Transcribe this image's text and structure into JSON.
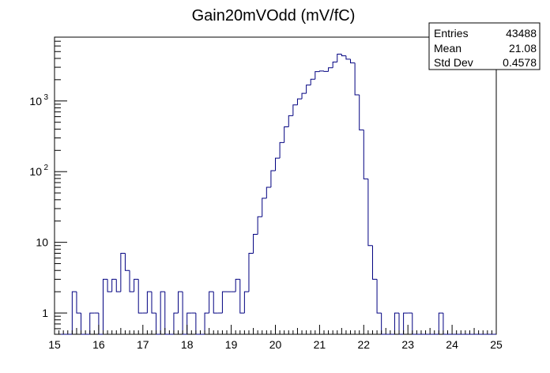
{
  "chart_data": {
    "type": "histogram",
    "title": "Gain20mVOdd (mV/fC)",
    "xlabel": "",
    "ylabel": "",
    "xlim": [
      15,
      25
    ],
    "ylim": [
      0.5,
      8000
    ],
    "y_scale": "log",
    "grid": false,
    "line_color": "#000080",
    "x_ticks": [
      "15",
      "16",
      "17",
      "18",
      "19",
      "20",
      "21",
      "22",
      "23",
      "24",
      "25"
    ],
    "y_ticks": [
      {
        "value": 1,
        "label": "1"
      },
      {
        "value": 10,
        "label": "10"
      },
      {
        "value": 100,
        "label": "10",
        "exponent": "2"
      },
      {
        "value": 1000,
        "label": "10",
        "exponent": "3"
      }
    ],
    "bins": {
      "start": 15.0,
      "width": 0.1,
      "counts": [
        0,
        0,
        0,
        0,
        2,
        1,
        0,
        0,
        1,
        1,
        0,
        3,
        2,
        3,
        2,
        7,
        4,
        2,
        3,
        1,
        1,
        2,
        1,
        0,
        2,
        0,
        0,
        1,
        2,
        0,
        1,
        1,
        0,
        0,
        1,
        2,
        1,
        1,
        2,
        2,
        2,
        3,
        1,
        2,
        7,
        13,
        23,
        42,
        60,
        103,
        155,
        258,
        430,
        620,
        880,
        1070,
        1280,
        1680,
        2030,
        2600,
        2650,
        2620,
        2950,
        3550,
        4600,
        4350,
        3900,
        3450,
        1220,
        390,
        79,
        9,
        3,
        1,
        0,
        0,
        0,
        1,
        0,
        1,
        1,
        0,
        0,
        0,
        0,
        0,
        0,
        1,
        0,
        0,
        0,
        0,
        0,
        0,
        0,
        0,
        0,
        0,
        0,
        0
      ]
    }
  },
  "stats": {
    "rows": [
      {
        "label": "Entries",
        "value": "43488"
      },
      {
        "label": "Mean",
        "value": "21.08"
      },
      {
        "label": "Std Dev",
        "value": "0.4578"
      }
    ]
  }
}
